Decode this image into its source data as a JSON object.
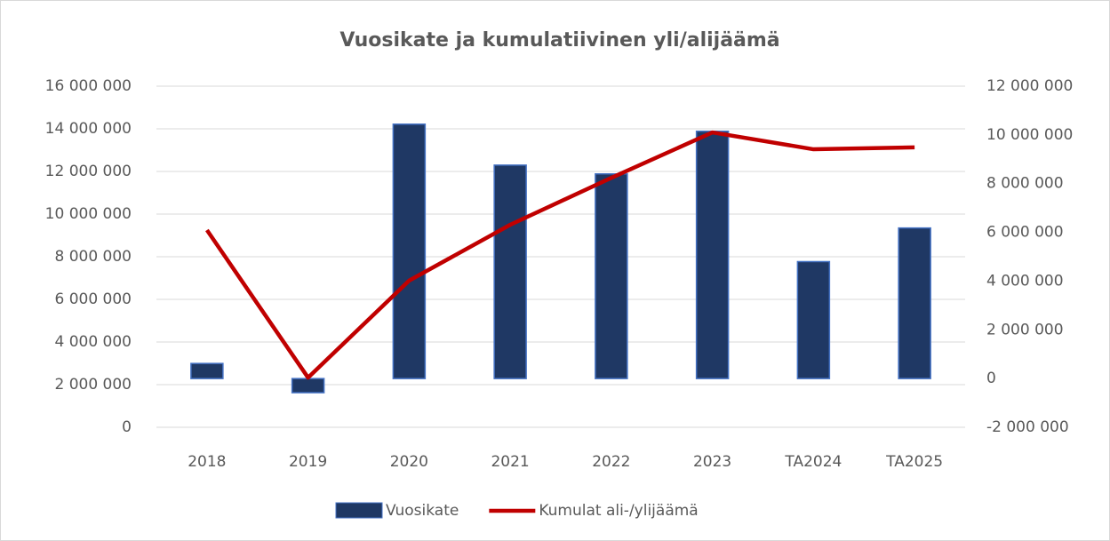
{
  "chart_data": {
    "type": "combo",
    "title": "Vuosikate ja kumulatiivinen yli/alijäämä",
    "categories": [
      "2018",
      "2019",
      "2020",
      "2021",
      "2022",
      "2023",
      "TA2024",
      "TA2025"
    ],
    "series": [
      {
        "name": "Vuosikate",
        "type": "bar",
        "axis": "y2",
        "color": "#1f3864",
        "values": [
          620000,
          -580000,
          10440000,
          8760000,
          8400000,
          10150000,
          4800000,
          6180000
        ]
      },
      {
        "name": "Kumulat ali-/ylijäämä",
        "type": "line",
        "axis": "y",
        "color": "#c00000",
        "values": [
          9250000,
          2330000,
          6880000,
          9500000,
          11700000,
          13830000,
          13040000,
          13130000
        ]
      }
    ],
    "ylim": [
      0,
      16000000
    ],
    "yticks": [
      {
        "value": 0,
        "label": "0"
      },
      {
        "value": 2000000,
        "label": "2 000 000"
      },
      {
        "value": 4000000,
        "label": "4 000 000"
      },
      {
        "value": 6000000,
        "label": "6 000 000"
      },
      {
        "value": 8000000,
        "label": "8 000 000"
      },
      {
        "value": 10000000,
        "label": "10 000 000"
      },
      {
        "value": 12000000,
        "label": "12 000 000"
      },
      {
        "value": 14000000,
        "label": "14 000 000"
      },
      {
        "value": 16000000,
        "label": "16 000 000"
      }
    ],
    "y2lim": [
      -2000000,
      12000000
    ],
    "y2ticks": [
      {
        "value": -2000000,
        "label": "-2 000 000"
      },
      {
        "value": 0,
        "label": "0"
      },
      {
        "value": 2000000,
        "label": "2 000 000"
      },
      {
        "value": 4000000,
        "label": "4 000 000"
      },
      {
        "value": 6000000,
        "label": "6 000 000"
      },
      {
        "value": 8000000,
        "label": "8 000 000"
      },
      {
        "value": 10000000,
        "label": "10 000 000"
      },
      {
        "value": 12000000,
        "label": "12 000 000"
      }
    ],
    "grid": true,
    "legend": "bottom"
  }
}
